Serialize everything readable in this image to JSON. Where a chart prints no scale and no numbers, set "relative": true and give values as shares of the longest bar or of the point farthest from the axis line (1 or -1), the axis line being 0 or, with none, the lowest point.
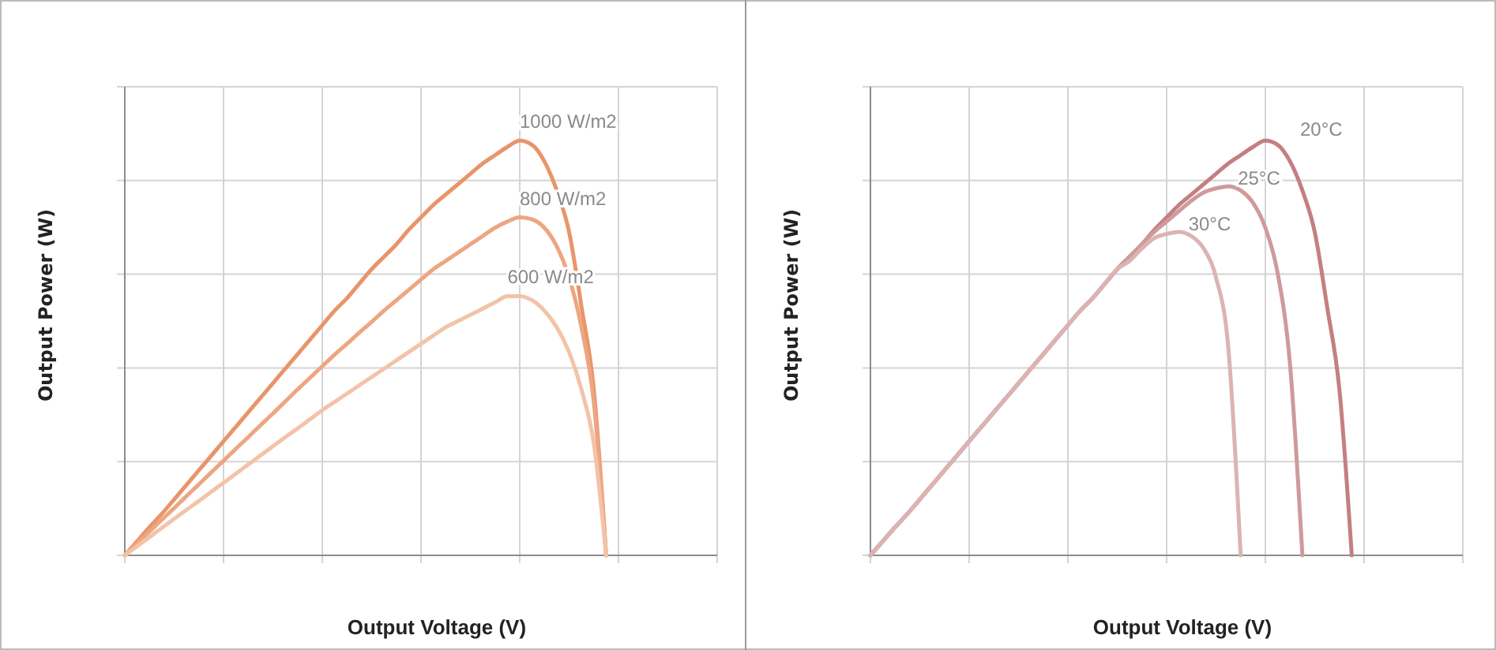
{
  "chart_data": [
    {
      "type": "line",
      "xlabel": "Output Voltage (V)",
      "ylabel": "Output Power (W)",
      "relative": true,
      "grid": true,
      "marker": "none",
      "line_style": "solid",
      "categories": [
        null,
        null,
        null,
        null,
        null,
        null,
        null,
        null,
        null,
        null,
        null,
        null,
        null,
        null,
        null,
        null,
        null,
        null,
        null,
        null,
        null,
        null,
        null,
        null,
        null,
        null,
        null,
        null,
        null,
        null,
        null,
        null,
        null,
        null,
        null,
        null,
        null,
        null,
        null,
        null,
        null,
        null,
        null,
        null,
        null,
        null,
        null,
        null,
        null
      ],
      "series": [
        {
          "name": "1000 W/m2",
          "color": "#e8956a",
          "values": [
            0,
            0.034,
            0.068,
            0.1,
            0.135,
            0.17,
            0.205,
            0.24,
            0.275,
            0.31,
            0.345,
            0.38,
            0.415,
            0.45,
            0.485,
            0.52,
            0.555,
            0.59,
            0.62,
            0.655,
            0.69,
            0.72,
            0.75,
            0.785,
            0.815,
            0.845,
            0.87,
            0.895,
            0.92,
            0.945,
            0.965,
            0.985,
            1,
            0.99,
            0.95,
            0.88,
            0.78,
            0.6,
            0.4,
            0,
            null,
            null,
            null,
            null,
            null,
            null,
            null,
            null,
            null
          ]
        },
        {
          "name": "800 W/m2",
          "color": "#eda681",
          "values": [
            0,
            0.029,
            0.057,
            0.086,
            0.114,
            0.143,
            0.171,
            0.2,
            0.228,
            0.257,
            0.285,
            0.314,
            0.342,
            0.371,
            0.4,
            0.428,
            0.456,
            0.484,
            0.51,
            0.537,
            0.563,
            0.59,
            0.615,
            0.64,
            0.665,
            0.69,
            0.71,
            0.73,
            0.75,
            0.77,
            0.79,
            0.805,
            0.815,
            0.81,
            0.79,
            0.745,
            0.67,
            0.55,
            0.37,
            0,
            null,
            null,
            null,
            null,
            null,
            null,
            null,
            null,
            null
          ]
        },
        {
          "name": "600 W/m2",
          "color": "#f3c3a8",
          "values": [
            0,
            0.022,
            0.044,
            0.066,
            0.088,
            0.11,
            0.131,
            0.153,
            0.175,
            0.197,
            0.219,
            0.241,
            0.263,
            0.285,
            0.306,
            0.328,
            0.35,
            0.37,
            0.39,
            0.41,
            0.43,
            0.45,
            0.47,
            0.49,
            0.51,
            0.53,
            0.55,
            0.565,
            0.58,
            0.595,
            0.61,
            0.625,
            0.625,
            0.615,
            0.59,
            0.55,
            0.49,
            0.4,
            0.27,
            0,
            null,
            null,
            null,
            null,
            null,
            null,
            null,
            null,
            null
          ]
        }
      ]
    },
    {
      "type": "line",
      "xlabel": "Output Voltage (V)",
      "ylabel": "Output Power (W)",
      "relative": true,
      "grid": true,
      "marker": "none",
      "line_style": "solid",
      "categories": [
        null,
        null,
        null,
        null,
        null,
        null,
        null,
        null,
        null,
        null,
        null,
        null,
        null,
        null,
        null,
        null,
        null,
        null,
        null,
        null,
        null,
        null,
        null,
        null,
        null,
        null,
        null,
        null,
        null,
        null,
        null,
        null,
        null,
        null,
        null,
        null,
        null,
        null,
        null,
        null,
        null,
        null,
        null,
        null,
        null,
        null,
        null,
        null,
        null
      ],
      "series": [
        {
          "name": "20°C",
          "color": "#c47f82",
          "values": [
            0,
            0.034,
            0.068,
            0.1,
            0.135,
            0.17,
            0.205,
            0.24,
            0.275,
            0.31,
            0.345,
            0.38,
            0.415,
            0.45,
            0.485,
            0.52,
            0.555,
            0.59,
            0.62,
            0.655,
            0.69,
            0.72,
            0.75,
            0.785,
            0.815,
            0.845,
            0.87,
            0.895,
            0.92,
            0.945,
            0.965,
            0.985,
            1,
            0.99,
            0.95,
            0.88,
            0.78,
            0.6,
            0.4,
            0,
            null,
            null,
            null,
            null,
            null,
            null,
            null,
            null,
            null
          ]
        },
        {
          "name": "25°C",
          "color": "#cf9a9b",
          "values": [
            0,
            0.034,
            0.068,
            0.1,
            0.135,
            0.17,
            0.205,
            0.24,
            0.275,
            0.31,
            0.345,
            0.38,
            0.415,
            0.45,
            0.485,
            0.52,
            0.555,
            0.59,
            0.62,
            0.655,
            0.69,
            0.72,
            0.75,
            0.78,
            0.805,
            0.83,
            0.855,
            0.875,
            0.885,
            0.89,
            0.88,
            0.85,
            0.79,
            0.68,
            0.46,
            0,
            null,
            null,
            null,
            null,
            null,
            null,
            null,
            null,
            null,
            null,
            null,
            null,
            null
          ]
        },
        {
          "name": "30°C",
          "color": "#dcb3b3",
          "values": [
            0,
            0.034,
            0.068,
            0.1,
            0.135,
            0.17,
            0.205,
            0.24,
            0.275,
            0.31,
            0.345,
            0.38,
            0.415,
            0.45,
            0.485,
            0.52,
            0.555,
            0.59,
            0.62,
            0.655,
            0.69,
            0.71,
            0.74,
            0.765,
            0.775,
            0.78,
            0.77,
            0.74,
            0.67,
            0.5,
            0,
            null,
            null,
            null,
            null,
            null,
            null,
            null,
            null,
            null,
            null,
            null,
            null,
            null,
            null,
            null,
            null,
            null,
            null
          ]
        }
      ]
    }
  ]
}
